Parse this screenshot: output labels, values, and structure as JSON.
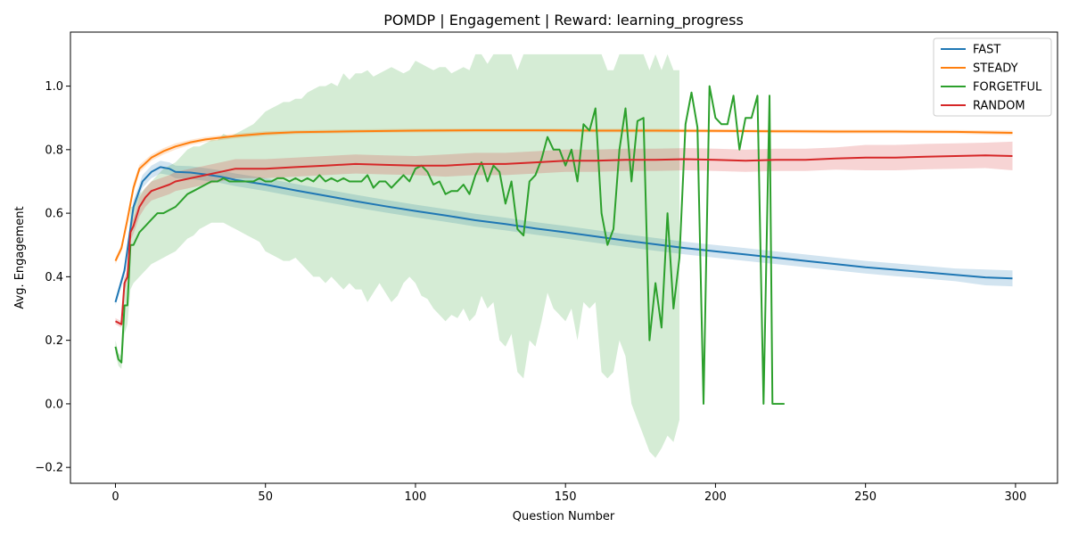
{
  "chart_data": {
    "type": "line",
    "title": "POMDP | Engagement | Reward: learning_progress",
    "xlabel": "Question Number",
    "ylabel": "Avg. Engagement",
    "xlim": [
      -15,
      314
    ],
    "ylim": [
      -0.25,
      1.17
    ],
    "xticks": [
      0,
      50,
      100,
      150,
      200,
      250,
      300
    ],
    "yticks": [
      -0.2,
      0.0,
      0.2,
      0.4,
      0.6,
      0.8,
      1.0
    ],
    "ytick_labels": [
      "−0.2",
      "0.0",
      "0.2",
      "0.4",
      "0.6",
      "0.8",
      "1.0"
    ],
    "grid": false,
    "legend_position": "top-right",
    "series": [
      {
        "name": "FAST",
        "color": "#1f77b4",
        "x": [
          0,
          3,
          6,
          9,
          12,
          15,
          18,
          20,
          25,
          30,
          35,
          40,
          50,
          60,
          70,
          80,
          90,
          100,
          110,
          120,
          130,
          140,
          150,
          160,
          170,
          180,
          190,
          200,
          210,
          220,
          230,
          240,
          250,
          260,
          270,
          280,
          290,
          299
        ],
        "y": [
          0.32,
          0.42,
          0.62,
          0.7,
          0.73,
          0.745,
          0.74,
          0.73,
          0.728,
          0.722,
          0.715,
          0.705,
          0.69,
          0.672,
          0.655,
          0.638,
          0.622,
          0.607,
          0.593,
          0.578,
          0.566,
          0.552,
          0.54,
          0.527,
          0.514,
          0.502,
          0.49,
          0.48,
          0.47,
          0.46,
          0.45,
          0.44,
          0.43,
          0.422,
          0.414,
          0.406,
          0.398,
          0.395
        ],
        "band": [
          0.01,
          0.015,
          0.02,
          0.02,
          0.02,
          0.02,
          0.02,
          0.02,
          0.02,
          0.02,
          0.02,
          0.02,
          0.02,
          0.02,
          0.02,
          0.02,
          0.02,
          0.02,
          0.02,
          0.02,
          0.02,
          0.02,
          0.02,
          0.02,
          0.02,
          0.02,
          0.02,
          0.02,
          0.02,
          0.02,
          0.02,
          0.02,
          0.02,
          0.02,
          0.02,
          0.02,
          0.025,
          0.025
        ]
      },
      {
        "name": "STEADY",
        "color": "#ff7f0e",
        "x": [
          0,
          2,
          4,
          6,
          8,
          12,
          16,
          20,
          25,
          30,
          40,
          50,
          60,
          80,
          100,
          120,
          140,
          160,
          180,
          200,
          220,
          240,
          260,
          280,
          299
        ],
        "y": [
          0.45,
          0.49,
          0.58,
          0.68,
          0.74,
          0.775,
          0.795,
          0.81,
          0.823,
          0.832,
          0.843,
          0.851,
          0.855,
          0.858,
          0.86,
          0.861,
          0.861,
          0.86,
          0.86,
          0.859,
          0.858,
          0.857,
          0.857,
          0.856,
          0.853
        ],
        "band": [
          0.01,
          0.01,
          0.015,
          0.015,
          0.012,
          0.01,
          0.01,
          0.01,
          0.008,
          0.008,
          0.007,
          0.007,
          0.006,
          0.006,
          0.006,
          0.006,
          0.006,
          0.006,
          0.006,
          0.006,
          0.006,
          0.006,
          0.006,
          0.006,
          0.007
        ]
      },
      {
        "name": "FORGETFUL",
        "color": "#2ca02c",
        "x": [
          0,
          1,
          2,
          3,
          4,
          5,
          6,
          8,
          10,
          12,
          14,
          16,
          18,
          20,
          22,
          24,
          26,
          28,
          30,
          32,
          34,
          36,
          38,
          40,
          42,
          44,
          46,
          48,
          50,
          52,
          54,
          56,
          58,
          60,
          62,
          64,
          66,
          68,
          70,
          72,
          74,
          76,
          78,
          80,
          82,
          84,
          86,
          88,
          90,
          92,
          94,
          96,
          98,
          100,
          102,
          104,
          106,
          108,
          110,
          112,
          114,
          116,
          118,
          120,
          122,
          124,
          126,
          128,
          130,
          132,
          134,
          136,
          138,
          140,
          142,
          144,
          146,
          148,
          150,
          152,
          154,
          156,
          158,
          160,
          162,
          164,
          166,
          168,
          170,
          172,
          174,
          176,
          178,
          180,
          182,
          184,
          186,
          188,
          190,
          192,
          194,
          196,
          198,
          200,
          202,
          204,
          206,
          208,
          210,
          212,
          214,
          216,
          218,
          219,
          220,
          222,
          223
        ],
        "y": [
          0.18,
          0.14,
          0.13,
          0.31,
          0.31,
          0.5,
          0.5,
          0.54,
          0.56,
          0.58,
          0.6,
          0.6,
          0.61,
          0.62,
          0.64,
          0.66,
          0.67,
          0.68,
          0.69,
          0.7,
          0.7,
          0.71,
          0.7,
          0.7,
          0.7,
          0.7,
          0.7,
          0.71,
          0.7,
          0.7,
          0.71,
          0.71,
          0.7,
          0.71,
          0.7,
          0.71,
          0.7,
          0.72,
          0.7,
          0.71,
          0.7,
          0.71,
          0.7,
          0.7,
          0.7,
          0.72,
          0.68,
          0.7,
          0.7,
          0.68,
          0.7,
          0.72,
          0.7,
          0.74,
          0.75,
          0.73,
          0.69,
          0.7,
          0.66,
          0.67,
          0.67,
          0.69,
          0.66,
          0.72,
          0.76,
          0.7,
          0.75,
          0.73,
          0.63,
          0.7,
          0.55,
          0.53,
          0.7,
          0.72,
          0.77,
          0.84,
          0.8,
          0.8,
          0.75,
          0.8,
          0.7,
          0.88,
          0.86,
          0.93,
          0.6,
          0.5,
          0.55,
          0.8,
          0.93,
          0.7,
          0.89,
          0.9,
          0.2,
          0.38,
          0.24,
          0.6,
          0.3,
          0.46,
          0.88,
          0.98,
          0.87,
          0.0,
          1.0,
          0.9,
          0.88,
          0.88,
          0.97,
          0.8,
          0.9,
          0.9,
          0.97,
          0.0,
          0.97,
          0.0,
          0.0,
          0.0,
          0.0
        ],
        "band_lower": [
          0.16,
          0.12,
          0.11,
          0.22,
          0.25,
          0.36,
          0.38,
          0.4,
          0.42,
          0.44,
          0.45,
          0.46,
          0.47,
          0.48,
          0.5,
          0.52,
          0.53,
          0.55,
          0.56,
          0.57,
          0.57,
          0.57,
          0.56,
          0.55,
          0.54,
          0.53,
          0.52,
          0.51,
          0.48,
          0.47,
          0.46,
          0.45,
          0.45,
          0.46,
          0.44,
          0.42,
          0.4,
          0.4,
          0.38,
          0.4,
          0.38,
          0.36,
          0.38,
          0.36,
          0.36,
          0.32,
          0.35,
          0.38,
          0.35,
          0.32,
          0.34,
          0.38,
          0.4,
          0.38,
          0.34,
          0.33,
          0.3,
          0.28,
          0.26,
          0.28,
          0.27,
          0.3,
          0.26,
          0.28,
          0.34,
          0.3,
          0.32,
          0.2,
          0.18,
          0.22,
          0.1,
          0.08,
          0.2,
          0.18,
          0.26,
          0.35,
          0.3,
          0.28,
          0.26,
          0.3,
          0.2,
          0.32,
          0.3,
          0.32,
          0.1,
          0.08,
          0.1,
          0.2,
          0.15,
          0.0,
          -0.05,
          -0.1,
          -0.15,
          -0.17,
          -0.14,
          -0.1,
          -0.12,
          -0.05,
          0.2,
          0.3,
          0.25,
          0.0,
          1.0,
          0.9,
          0.88,
          0.88,
          0.97,
          0.8,
          0.9,
          0.9,
          0.97,
          0.0,
          0.97,
          0.0,
          0.0,
          0.0,
          0.0
        ],
        "band_upper": [
          0.2,
          0.16,
          0.15,
          0.4,
          0.37,
          0.62,
          0.62,
          0.66,
          0.68,
          0.7,
          0.72,
          0.74,
          0.75,
          0.76,
          0.78,
          0.8,
          0.81,
          0.81,
          0.82,
          0.83,
          0.83,
          0.85,
          0.84,
          0.85,
          0.86,
          0.87,
          0.88,
          0.9,
          0.92,
          0.93,
          0.94,
          0.95,
          0.95,
          0.96,
          0.96,
          0.98,
          0.99,
          1.0,
          1.0,
          1.01,
          1.0,
          1.04,
          1.02,
          1.04,
          1.04,
          1.05,
          1.03,
          1.04,
          1.05,
          1.06,
          1.05,
          1.04,
          1.05,
          1.08,
          1.07,
          1.06,
          1.05,
          1.06,
          1.06,
          1.04,
          1.05,
          1.06,
          1.05,
          1.1,
          1.1,
          1.07,
          1.1,
          1.1,
          1.1,
          1.1,
          1.05,
          1.1,
          1.1,
          1.1,
          1.1,
          1.1,
          1.1,
          1.1,
          1.1,
          1.1,
          1.1,
          1.1,
          1.1,
          1.1,
          1.1,
          1.05,
          1.05,
          1.1,
          1.1,
          1.1,
          1.1,
          1.1,
          1.05,
          1.1,
          1.05,
          1.1,
          1.05,
          1.05,
          1.05,
          1.0,
          1.0,
          0.0,
          1.0,
          0.9,
          0.88,
          0.88,
          0.97,
          0.8,
          0.9,
          0.9,
          0.97,
          0.0,
          0.97,
          0.0,
          0.0,
          0.0,
          0.0
        ],
        "band_end_x": 189
      },
      {
        "name": "RANDOM",
        "color": "#d62728",
        "x": [
          0,
          2,
          3,
          4,
          5,
          6,
          8,
          10,
          12,
          15,
          18,
          20,
          25,
          30,
          35,
          40,
          50,
          60,
          70,
          80,
          90,
          100,
          110,
          120,
          130,
          140,
          150,
          160,
          170,
          180,
          190,
          200,
          210,
          220,
          230,
          240,
          250,
          260,
          270,
          280,
          290,
          299
        ],
        "y": [
          0.26,
          0.25,
          0.38,
          0.4,
          0.54,
          0.56,
          0.62,
          0.65,
          0.67,
          0.68,
          0.69,
          0.7,
          0.71,
          0.72,
          0.73,
          0.74,
          0.74,
          0.745,
          0.75,
          0.755,
          0.752,
          0.75,
          0.75,
          0.755,
          0.755,
          0.76,
          0.765,
          0.765,
          0.768,
          0.768,
          0.77,
          0.768,
          0.765,
          0.768,
          0.768,
          0.772,
          0.775,
          0.775,
          0.778,
          0.78,
          0.782,
          0.78
        ],
        "band": [
          0.01,
          0.01,
          0.02,
          0.02,
          0.025,
          0.025,
          0.03,
          0.03,
          0.03,
          0.03,
          0.03,
          0.03,
          0.03,
          0.03,
          0.03,
          0.03,
          0.03,
          0.03,
          0.03,
          0.03,
          0.03,
          0.03,
          0.035,
          0.035,
          0.035,
          0.035,
          0.035,
          0.035,
          0.035,
          0.035,
          0.035,
          0.035,
          0.035,
          0.035,
          0.035,
          0.035,
          0.04,
          0.04,
          0.04,
          0.04,
          0.04,
          0.045
        ]
      }
    ]
  }
}
